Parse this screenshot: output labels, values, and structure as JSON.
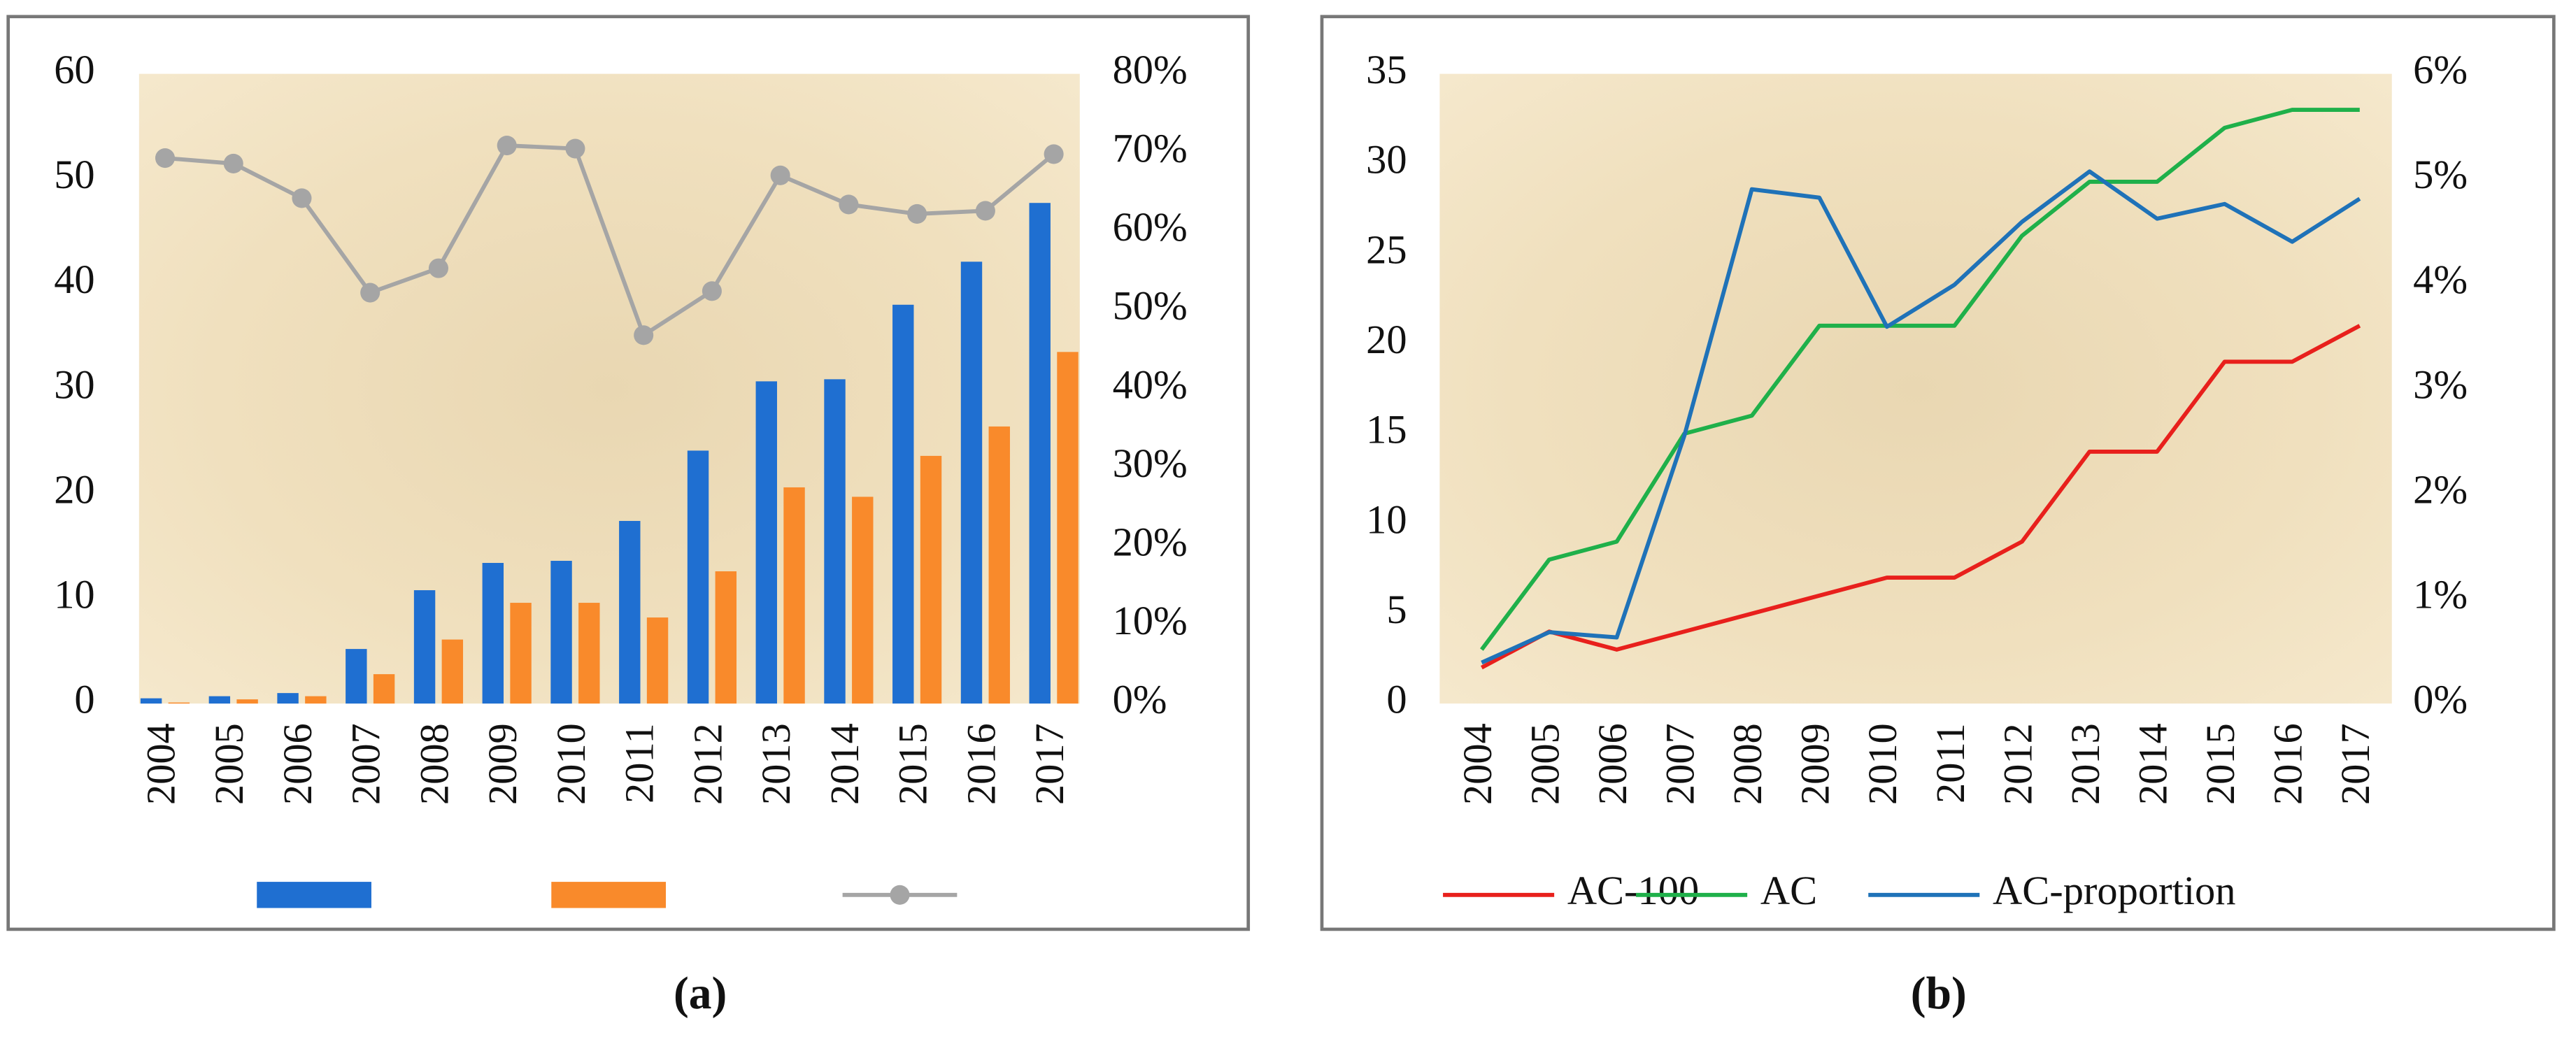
{
  "chart_data": [
    {
      "type": "bar",
      "caption": "(a)",
      "categories": [
        "2004",
        "2005",
        "2006",
        "2007",
        "2008",
        "2009",
        "2010",
        "2011",
        "2012",
        "2013",
        "2014",
        "2015",
        "2016",
        "2017"
      ],
      "series": [
        {
          "color": "#1f6fd1",
          "values": [
            0.5,
            0.7,
            1.0,
            5.2,
            10.8,
            13.4,
            13.6,
            17.4,
            24.1,
            30.7,
            30.9,
            38.0,
            42.1,
            47.7
          ]
        },
        {
          "color": "#f98a2b",
          "values": [
            0.1,
            0.4,
            0.7,
            2.8,
            6.1,
            9.6,
            9.6,
            8.2,
            12.6,
            20.6,
            19.7,
            23.6,
            26.4,
            33.5
          ]
        },
        {
          "type": "line",
          "axis": "y2",
          "color": "#a5a5a5",
          "marker": "circle",
          "values": [
            69.3,
            68.6,
            64.2,
            52.2,
            55.3,
            70.9,
            70.5,
            46.8,
            52.4,
            67.1,
            63.4,
            62.2,
            62.6,
            69.8
          ]
        }
      ],
      "ylim": [
        0,
        60
      ],
      "yticks": [
        0,
        10,
        20,
        30,
        40,
        50,
        60
      ],
      "y2lim": [
        0,
        80
      ],
      "y2ticks": [
        {
          "value": 0,
          "label": "0%"
        },
        {
          "value": 10,
          "label": "10%"
        },
        {
          "value": 20,
          "label": "20%"
        },
        {
          "value": 30,
          "label": "30%"
        },
        {
          "value": 40,
          "label": "40%"
        },
        {
          "value": 50,
          "label": "50%"
        },
        {
          "value": 60,
          "label": "60%"
        },
        {
          "value": 70,
          "label": "70%"
        },
        {
          "value": 80,
          "label": "80%"
        }
      ],
      "legend": "bottom"
    },
    {
      "type": "line",
      "caption": "(b)",
      "categories": [
        "2004",
        "2005",
        "2006",
        "2007",
        "2008",
        "2009",
        "2010",
        "2011",
        "2012",
        "2013",
        "2014",
        "2015",
        "2016",
        "2017"
      ],
      "series": [
        {
          "name": "AC-100",
          "color": "#e8201c",
          "values": [
            2,
            4,
            3,
            4,
            5,
            6,
            7,
            7,
            9,
            14,
            14,
            19,
            19,
            21
          ]
        },
        {
          "name": "AC",
          "color": "#1fb04a",
          "values": [
            3,
            8,
            9,
            15,
            16,
            21,
            21,
            21,
            26,
            29,
            29,
            32,
            33,
            33
          ]
        },
        {
          "name": "AC-proportion",
          "axis": "y2",
          "color": "#1f72b8",
          "values": [
            0.39,
            0.68,
            0.63,
            2.55,
            4.9,
            4.82,
            3.59,
            3.99,
            4.59,
            5.07,
            4.62,
            4.76,
            4.4,
            4.81
          ]
        }
      ],
      "ylim": [
        0,
        35
      ],
      "yticks": [
        0,
        5,
        10,
        15,
        20,
        25,
        30,
        35
      ],
      "y2lim": [
        0,
        6
      ],
      "y2ticks": [
        {
          "value": 0,
          "label": "0%"
        },
        {
          "value": 1,
          "label": "1%"
        },
        {
          "value": 2,
          "label": "2%"
        },
        {
          "value": 3,
          "label": "3%"
        },
        {
          "value": 4,
          "label": "4%"
        },
        {
          "value": 5,
          "label": "5%"
        },
        {
          "value": 6,
          "label": "6%"
        }
      ],
      "legend": "bottom"
    }
  ]
}
